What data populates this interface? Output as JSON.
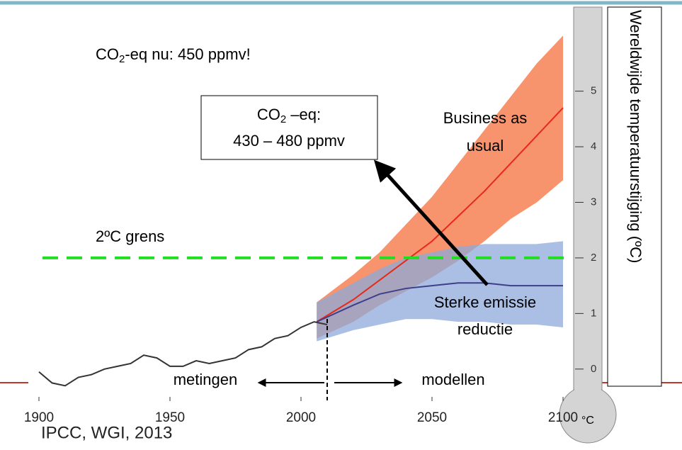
{
  "chart_data": {
    "type": "line",
    "title_parts": [
      "CO",
      "2",
      "-eq nu: 450 ppmv!"
    ],
    "box_line1": [
      "CO",
      "2",
      " –eq:"
    ],
    "box_line2": "430 – 480 ppmv",
    "threshold_label": "2ºC grens",
    "threshold_value": 2,
    "threshold_color": "#22dd22",
    "bau_label": [
      "Business as",
      "usual"
    ],
    "strong_label": [
      "Sterke emissie",
      "reductie"
    ],
    "measured_label": "metingen",
    "modelled_label": "modellen",
    "split_x": 2010,
    "ylabel": "Wereldwijde temperatuurstijging (ºC)",
    "unit": "°C",
    "source": "IPCC, WGI, 2013",
    "xlim": [
      1900,
      2100
    ],
    "xticks": [
      1900,
      1950,
      2000,
      2050,
      2100
    ],
    "ylim": [
      -0.5,
      6.5
    ],
    "yticks": [
      0,
      1,
      2,
      3,
      4,
      5
    ],
    "series": [
      {
        "color": "#333333",
        "x": [
          1900,
          1905,
          1910,
          1915,
          1920,
          1925,
          1930,
          1935,
          1940,
          1945,
          1950,
          1955,
          1960,
          1965,
          1970,
          1975,
          1980,
          1985,
          1990,
          1995,
          2000,
          2005,
          2010
        ],
        "values": [
          -0.05,
          -0.25,
          -0.3,
          -0.15,
          -0.1,
          0.0,
          0.05,
          0.1,
          0.25,
          0.2,
          0.05,
          0.05,
          0.15,
          0.1,
          0.15,
          0.2,
          0.35,
          0.4,
          0.55,
          0.6,
          0.75,
          0.85,
          0.8
        ]
      },
      {
        "color": "#e8281a",
        "band_color": "#f7946e",
        "x": [
          2006,
          2020,
          2030,
          2040,
          2050,
          2060,
          2070,
          2080,
          2090,
          2100
        ],
        "values": [
          0.85,
          1.25,
          1.6,
          1.95,
          2.3,
          2.75,
          3.2,
          3.7,
          4.2,
          4.7
        ],
        "upper": [
          1.2,
          1.7,
          2.1,
          2.6,
          3.1,
          3.7,
          4.3,
          4.9,
          5.5,
          6.0
        ],
        "lower": [
          0.55,
          0.85,
          1.15,
          1.4,
          1.65,
          1.95,
          2.3,
          2.7,
          3.0,
          3.4
        ]
      },
      {
        "color": "#3e3f8a",
        "band_color": "#8eaad9",
        "x": [
          2006,
          2020,
          2030,
          2040,
          2050,
          2060,
          2070,
          2080,
          2090,
          2100
        ],
        "values": [
          0.85,
          1.15,
          1.35,
          1.45,
          1.5,
          1.55,
          1.55,
          1.5,
          1.5,
          1.5
        ],
        "upper": [
          1.2,
          1.55,
          1.8,
          2.0,
          2.1,
          2.2,
          2.25,
          2.25,
          2.25,
          2.3
        ],
        "lower": [
          0.5,
          0.7,
          0.8,
          0.9,
          0.9,
          0.85,
          0.85,
          0.8,
          0.8,
          0.75
        ]
      }
    ]
  }
}
